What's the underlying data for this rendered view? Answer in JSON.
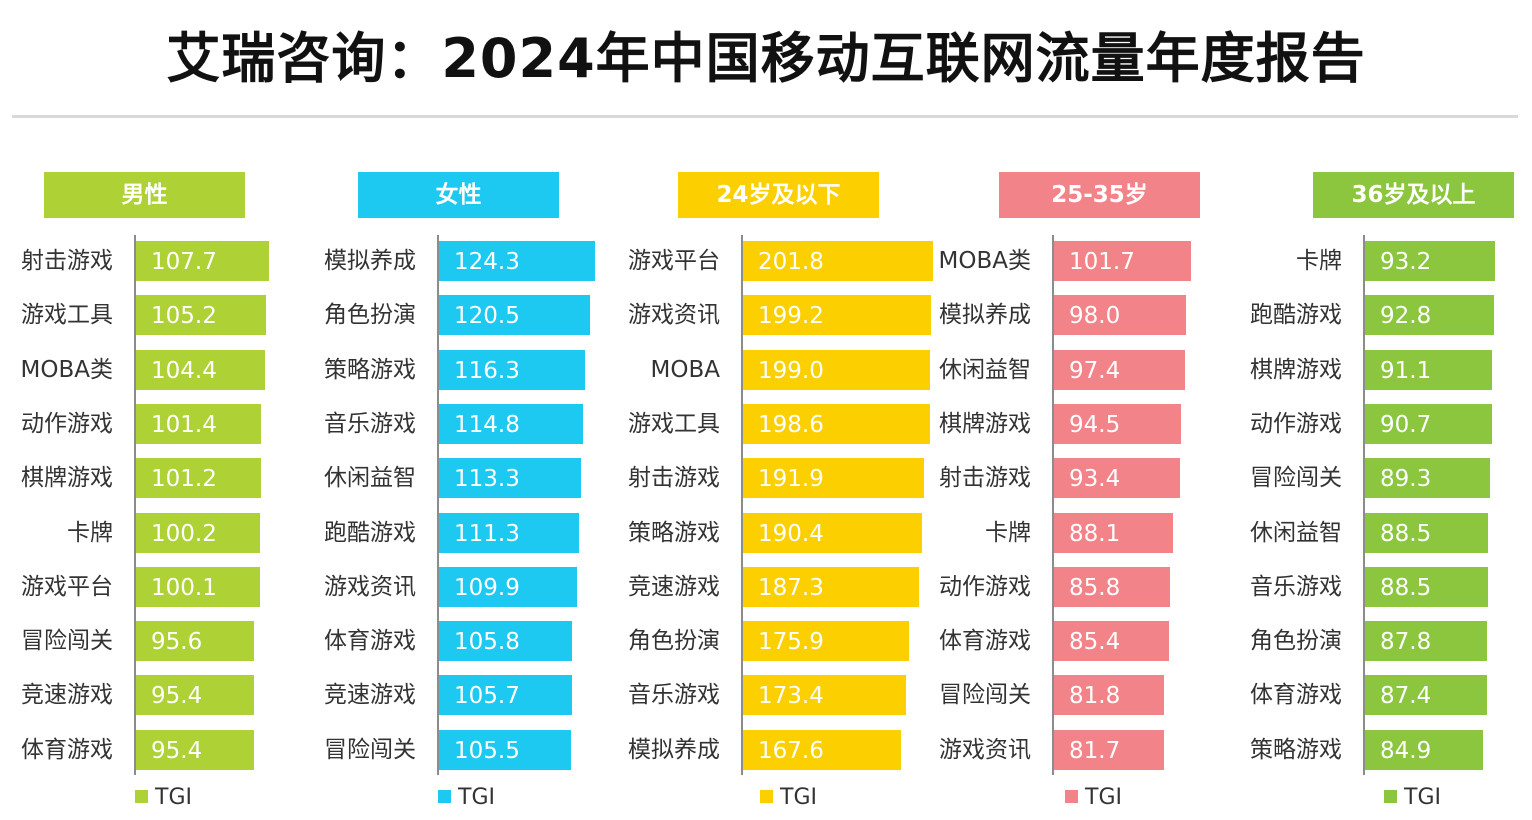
{
  "title": "艾瑞咨询：2024年中国移动互联网流量年度报告",
  "chart_data": [
    {
      "type": "bar",
      "orientation": "horizontal",
      "title": "男性",
      "color": "#aed136",
      "legend": "TGI",
      "categories": [
        "射击游戏",
        "游戏工具",
        "MOBA类",
        "动作游戏",
        "棋牌游戏",
        "卡牌",
        "游戏平台",
        "冒险闯关",
        "竞速游戏",
        "体育游戏"
      ],
      "series": [
        {
          "name": "TGI",
          "values": [
            "107.7",
            "105.2",
            "104.4",
            "101.4",
            "101.2",
            "100.2",
            "100.1",
            "95.6",
            "95.4",
            "95.4"
          ]
        }
      ]
    },
    {
      "type": "bar",
      "orientation": "horizontal",
      "title": "女性",
      "color": "#1ec9f1",
      "legend": "TGI",
      "categories": [
        "模拟养成",
        "角色扮演",
        "策略游戏",
        "音乐游戏",
        "休闲益智",
        "跑酷游戏",
        "游戏资讯",
        "体育游戏",
        "竞速游戏",
        "冒险闯关"
      ],
      "series": [
        {
          "name": "TGI",
          "values": [
            "124.3",
            "120.5",
            "116.3",
            "114.8",
            "113.3",
            "111.3",
            "109.9",
            "105.8",
            "105.7",
            "105.5"
          ]
        }
      ]
    },
    {
      "type": "bar",
      "orientation": "horizontal",
      "title": "24岁及以下",
      "color": "#fbcf00",
      "legend": "TGI",
      "categories": [
        "游戏平台",
        "游戏资讯",
        "MOBA",
        "游戏工具",
        "射击游戏",
        "策略游戏",
        "竞速游戏",
        "角色扮演",
        "音乐游戏",
        "模拟养成"
      ],
      "series": [
        {
          "name": "TGI",
          "values": [
            "201.8",
            "199.2",
            "199.0",
            "198.6",
            "191.9",
            "190.4",
            "187.3",
            "175.9",
            "173.4",
            "167.6"
          ]
        }
      ]
    },
    {
      "type": "bar",
      "orientation": "horizontal",
      "title": "25-35岁",
      "color": "#f28389",
      "legend": "TGI",
      "categories": [
        "MOBA类",
        "模拟养成",
        "休闲益智",
        "棋牌游戏",
        "射击游戏",
        "卡牌",
        "动作游戏",
        "体育游戏",
        "冒险闯关",
        "游戏资讯"
      ],
      "series": [
        {
          "name": "TGI",
          "values": [
            "101.7",
            "98.0",
            "97.4",
            "94.5",
            "93.4",
            "88.1",
            "85.8",
            "85.4",
            "81.8",
            "81.7"
          ]
        }
      ]
    },
    {
      "type": "bar",
      "orientation": "horizontal",
      "title": "36岁及以上",
      "color": "#8cc63f",
      "legend": "TGI",
      "categories": [
        "卡牌",
        "跑酷游戏",
        "棋牌游戏",
        "动作游戏",
        "冒险闯关",
        "休闲益智",
        "音乐游戏",
        "角色扮演",
        "体育游戏",
        "策略游戏"
      ],
      "series": [
        {
          "name": "TGI",
          "values": [
            "93.2",
            "92.8",
            "91.1",
            "90.7",
            "89.3",
            "88.5",
            "88.5",
            "87.8",
            "87.4",
            "84.9"
          ]
        }
      ]
    }
  ]
}
